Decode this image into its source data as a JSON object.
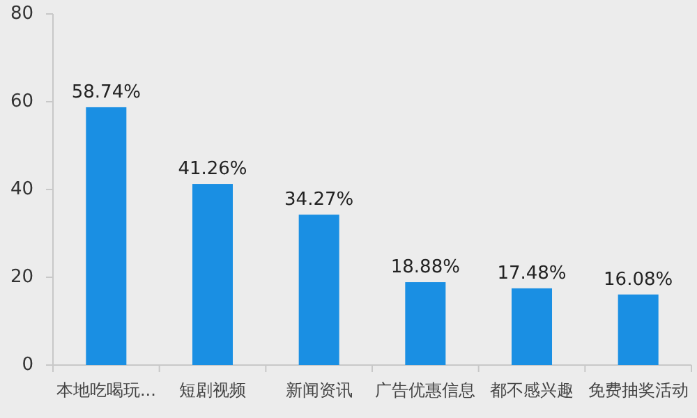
{
  "chart_data": {
    "type": "bar",
    "categories": [
      "本地吃喝玩...",
      "短剧视频",
      "新闻资讯",
      "广告优惠信息",
      "都不感兴趣",
      "免费抽奖活动"
    ],
    "values": [
      58.74,
      41.26,
      34.27,
      18.88,
      17.48,
      16.08
    ],
    "value_labels": [
      "58.74%",
      "41.26%",
      "34.27%",
      "18.88%",
      "17.48%",
      "16.08%"
    ],
    "color": "#1a8fe3",
    "ylim": [
      0,
      80
    ],
    "yticks": [
      0,
      20,
      40,
      60,
      80
    ],
    "grid": false
  }
}
